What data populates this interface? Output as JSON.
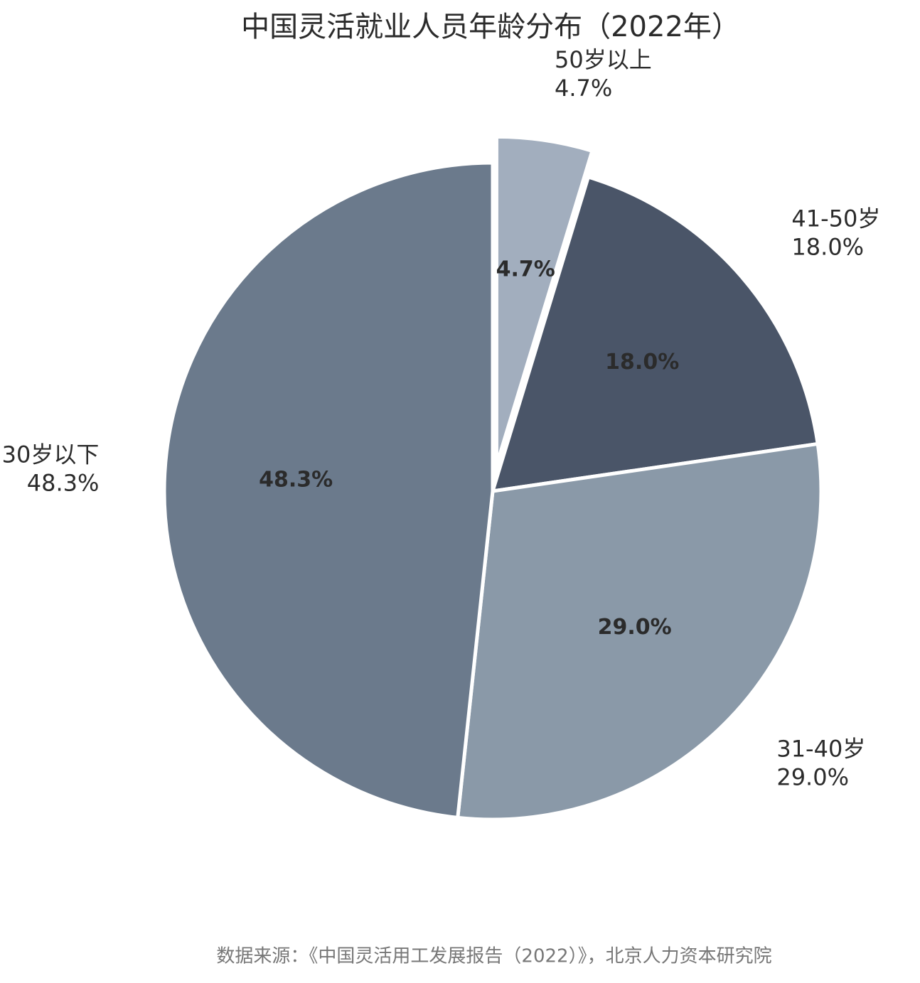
{
  "chart_data": {
    "type": "pie",
    "title": "中国灵活就业人员年龄分布（2022年）",
    "categories": [
      "50岁以上",
      "41-50岁",
      "31-40岁",
      "30岁以下"
    ],
    "values": [
      4.7,
      18.0,
      29.0,
      48.3
    ],
    "value_labels": [
      "4.7%",
      "18.0%",
      "29.0%",
      "48.3%"
    ],
    "colors": [
      "#a2aebe",
      "#4a5568",
      "#8a99a8",
      "#6b7a8c"
    ],
    "explode": [
      true,
      false,
      false,
      false
    ],
    "source": "数据来源：《中国灵活用工发展报告（2022）》，北京人力资本研究院"
  }
}
